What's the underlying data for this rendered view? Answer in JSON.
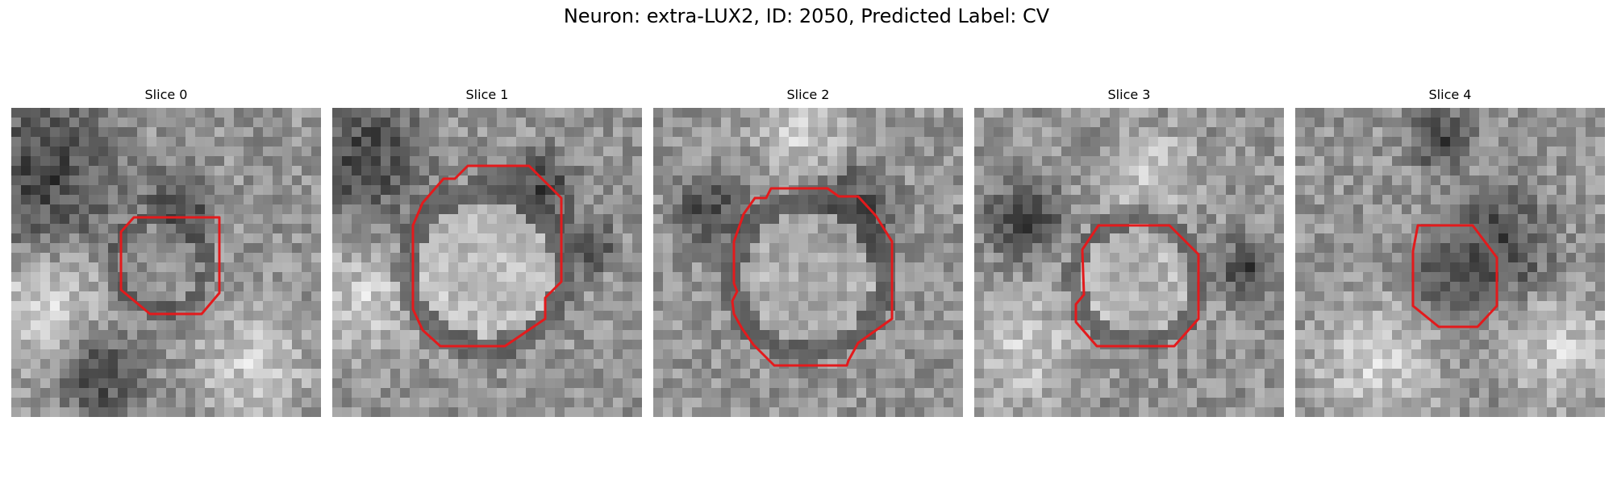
{
  "figure": {
    "title": "Neuron: extra-LUX2, ID: 2050, Predicted Label: CV"
  },
  "panels": [
    {
      "title": "Slice 0"
    },
    {
      "title": "Slice 1"
    },
    {
      "title": "Slice 2"
    },
    {
      "title": "Slice 3"
    },
    {
      "title": "Slice 4"
    }
  ],
  "colors": {
    "contour": "#e31a1c",
    "background": "#ffffff"
  }
}
